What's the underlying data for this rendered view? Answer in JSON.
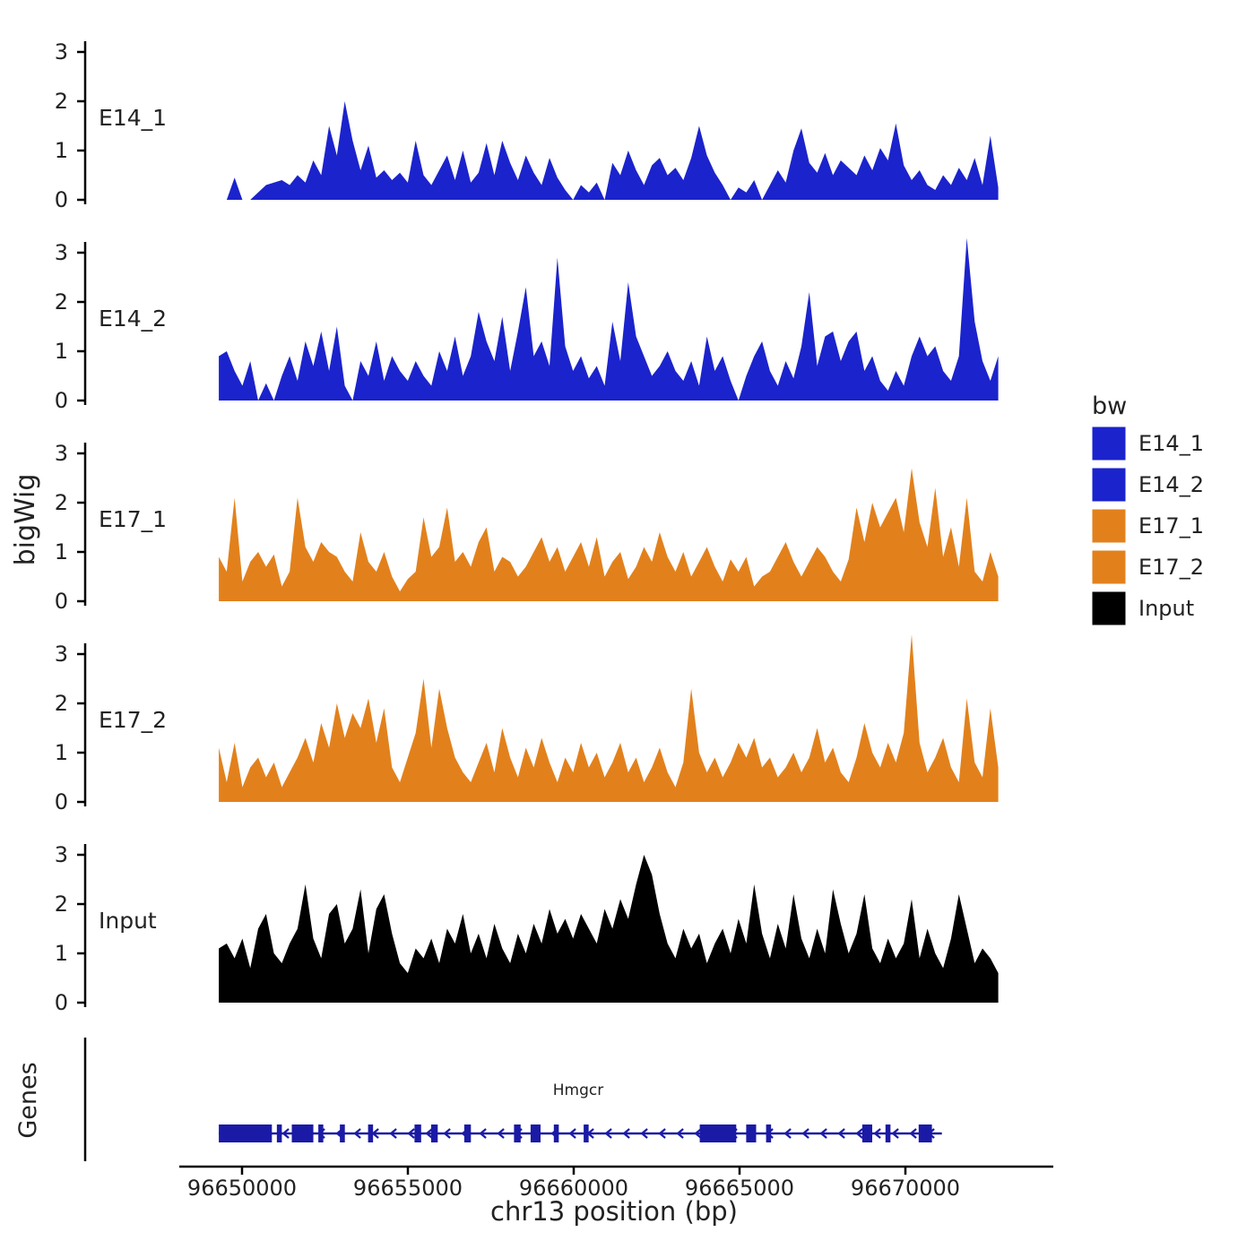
{
  "figure": {
    "y_axis_title": "bigWig",
    "genes_axis_title": "Genes"
  },
  "legend": {
    "title": "bw",
    "entries": [
      {
        "label": "E14_1",
        "color": "#1b23cc"
      },
      {
        "label": "E14_2",
        "color": "#1b23cc"
      },
      {
        "label": "E17_1",
        "color": "#e2811c"
      },
      {
        "label": "E17_2",
        "color": "#e2811c"
      },
      {
        "label": "Input",
        "color": "#000000"
      }
    ]
  },
  "genes": {
    "panel_label": "Genes",
    "gene": {
      "name": "Hmgcr",
      "strand": "-",
      "start": 96649300,
      "end": 96671100,
      "color": "#1a1aa6",
      "exons": [
        [
          96649300,
          96650900
        ],
        [
          96651050,
          96651200
        ],
        [
          96651500,
          96652150
        ],
        [
          96652300,
          96652450
        ],
        [
          96652950,
          96653100
        ],
        [
          96653800,
          96653950
        ],
        [
          96655200,
          96655400
        ],
        [
          96655700,
          96655900
        ],
        [
          96656700,
          96656900
        ],
        [
          96658200,
          96658400
        ],
        [
          96658700,
          96659000
        ],
        [
          96659400,
          96659550
        ],
        [
          96660300,
          96660450
        ],
        [
          96663800,
          96664900
        ],
        [
          96665200,
          96665500
        ],
        [
          96665800,
          96665950
        ],
        [
          96668700,
          96669000
        ],
        [
          96669400,
          96669550
        ],
        [
          96670400,
          96670800
        ]
      ]
    }
  },
  "chart_data": {
    "type": "area",
    "title": "",
    "xlabel": "chr13 position (bp)",
    "ylabel": "bigWig",
    "x_range": [
      96649300,
      96672800
    ],
    "ylim": [
      0,
      3.5
    ],
    "y_ticks": [
      0,
      1,
      2,
      3
    ],
    "x_ticks": [
      {
        "bp": 96650000,
        "label": "96650000"
      },
      {
        "bp": 96655000,
        "label": "96655000"
      },
      {
        "bp": 96660000,
        "label": "96660000"
      },
      {
        "bp": 96665000,
        "label": "96665000"
      },
      {
        "bp": 96670000,
        "label": "96670000"
      }
    ],
    "legend_position": "right",
    "grid": false,
    "tracks": [
      {
        "name": "E14_1",
        "color": "#1b23cc",
        "values": [
          0,
          0,
          0.45,
          0,
          0,
          0.15,
          0.3,
          0.35,
          0.4,
          0.3,
          0.5,
          0.35,
          0.8,
          0.5,
          1.5,
          0.9,
          2.0,
          1.2,
          0.6,
          1.1,
          0.45,
          0.6,
          0.4,
          0.55,
          0.35,
          1.2,
          0.5,
          0.3,
          0.6,
          0.9,
          0.4,
          1.0,
          0.35,
          0.55,
          1.15,
          0.5,
          1.2,
          0.75,
          0.4,
          0.9,
          0.55,
          0.3,
          0.85,
          0.45,
          0.2,
          0,
          0.3,
          0.15,
          0.35,
          0,
          0.75,
          0.5,
          1.0,
          0.6,
          0.3,
          0.7,
          0.85,
          0.5,
          0.65,
          0.4,
          0.85,
          1.5,
          0.9,
          0.55,
          0.3,
          0,
          0.25,
          0.15,
          0.4,
          0,
          0.3,
          0.6,
          0.35,
          1.0,
          1.45,
          0.75,
          0.55,
          0.95,
          0.5,
          0.8,
          0.65,
          0.5,
          0.9,
          0.6,
          1.05,
          0.8,
          1.55,
          0.7,
          0.4,
          0.6,
          0.3,
          0.2,
          0.5,
          0.3,
          0.65,
          0.4,
          0.85,
          0.3,
          1.3,
          0.25
        ]
      },
      {
        "name": "E14_2",
        "color": "#1b23cc",
        "values": [
          0.9,
          1.0,
          0.6,
          0.3,
          0.8,
          0,
          0.35,
          0,
          0.5,
          0.9,
          0.4,
          1.2,
          0.7,
          1.4,
          0.6,
          1.5,
          0.3,
          0,
          0.8,
          0.5,
          1.2,
          0.4,
          0.9,
          0.6,
          0.4,
          0.8,
          0.5,
          0.3,
          1.0,
          0.6,
          1.3,
          0.5,
          0.9,
          1.8,
          1.2,
          0.8,
          1.7,
          0.6,
          1.4,
          2.3,
          0.9,
          1.2,
          0.7,
          2.9,
          1.1,
          0.6,
          0.9,
          0.45,
          0.7,
          0.3,
          1.6,
          0.8,
          2.4,
          1.3,
          0.9,
          0.5,
          0.7,
          1.0,
          0.6,
          0.4,
          0.8,
          0.3,
          1.3,
          0.6,
          0.9,
          0.4,
          0,
          0.5,
          0.9,
          1.2,
          0.6,
          0.3,
          0.8,
          0.45,
          1.1,
          2.2,
          0.7,
          1.3,
          1.4,
          0.8,
          1.2,
          1.4,
          0.6,
          0.9,
          0.4,
          0.2,
          0.6,
          0.3,
          0.9,
          1.3,
          0.9,
          1.1,
          0.6,
          0.4,
          0.9,
          3.3,
          1.6,
          0.8,
          0.4,
          0.9
        ]
      },
      {
        "name": "E17_1",
        "color": "#e2811c",
        "values": [
          0.9,
          0.6,
          2.1,
          0.4,
          0.8,
          1.0,
          0.7,
          0.95,
          0.3,
          0.6,
          2.1,
          1.1,
          0.8,
          1.2,
          1.0,
          0.9,
          0.6,
          0.4,
          1.4,
          0.8,
          0.6,
          1.0,
          0.5,
          0.2,
          0.45,
          0.6,
          1.7,
          0.9,
          1.1,
          1.9,
          0.8,
          1.0,
          0.7,
          1.2,
          1.5,
          0.6,
          0.9,
          0.8,
          0.5,
          0.7,
          1.0,
          1.3,
          0.8,
          1.1,
          0.6,
          0.9,
          1.2,
          0.7,
          1.3,
          0.5,
          0.8,
          1.0,
          0.45,
          0.7,
          1.1,
          0.8,
          1.4,
          0.9,
          0.6,
          1.0,
          0.5,
          0.8,
          1.1,
          0.7,
          0.4,
          0.85,
          0.6,
          0.9,
          0.3,
          0.5,
          0.6,
          0.9,
          1.2,
          0.8,
          0.5,
          0.8,
          1.1,
          0.9,
          0.6,
          0.4,
          0.85,
          1.9,
          1.2,
          2.0,
          1.5,
          1.8,
          2.1,
          1.4,
          2.7,
          1.6,
          1.1,
          2.3,
          0.9,
          1.5,
          0.7,
          2.1,
          0.6,
          0.4,
          1.0,
          0.5
        ]
      },
      {
        "name": "E17_2",
        "color": "#e2811c",
        "values": [
          1.1,
          0.4,
          1.2,
          0.3,
          0.7,
          0.9,
          0.5,
          0.8,
          0.3,
          0.6,
          0.9,
          1.3,
          0.8,
          1.6,
          1.1,
          2.0,
          1.3,
          1.8,
          1.5,
          2.1,
          1.2,
          1.9,
          0.7,
          0.4,
          0.9,
          1.4,
          2.5,
          1.1,
          2.3,
          1.5,
          0.9,
          0.6,
          0.4,
          0.8,
          1.2,
          0.6,
          1.5,
          0.9,
          0.5,
          1.1,
          0.7,
          1.3,
          0.8,
          0.4,
          0.9,
          0.6,
          1.2,
          0.7,
          1.0,
          0.5,
          0.8,
          1.2,
          0.6,
          0.9,
          0.4,
          0.7,
          1.1,
          0.6,
          0.3,
          0.8,
          2.3,
          1.0,
          0.6,
          0.9,
          0.5,
          0.8,
          1.2,
          0.9,
          1.3,
          0.7,
          0.9,
          0.5,
          0.7,
          1.0,
          0.6,
          0.9,
          1.5,
          0.8,
          1.1,
          0.6,
          0.4,
          0.9,
          1.6,
          1.0,
          0.7,
          1.2,
          0.8,
          1.4,
          3.4,
          1.2,
          0.6,
          0.9,
          1.3,
          0.7,
          0.4,
          2.1,
          0.8,
          0.5,
          1.9,
          0.7
        ]
      },
      {
        "name": "Input",
        "color": "#000000",
        "values": [
          1.1,
          1.2,
          0.9,
          1.3,
          0.7,
          1.5,
          1.8,
          1.0,
          0.8,
          1.2,
          1.5,
          2.4,
          1.3,
          0.9,
          1.8,
          2.0,
          1.2,
          1.5,
          2.3,
          1.0,
          1.9,
          2.2,
          1.4,
          0.8,
          0.6,
          1.1,
          0.9,
          1.3,
          0.8,
          1.5,
          1.2,
          1.8,
          1.0,
          1.4,
          0.9,
          1.6,
          1.1,
          0.8,
          1.4,
          1.0,
          1.6,
          1.2,
          1.9,
          1.4,
          1.7,
          1.3,
          1.8,
          1.5,
          1.2,
          1.9,
          1.5,
          2.1,
          1.7,
          2.4,
          3.0,
          2.6,
          1.8,
          1.2,
          0.9,
          1.5,
          1.1,
          1.4,
          0.8,
          1.2,
          1.5,
          1.0,
          1.7,
          1.2,
          2.4,
          1.4,
          0.9,
          1.6,
          1.1,
          2.2,
          1.3,
          0.9,
          1.5,
          1.0,
          2.3,
          1.6,
          1.0,
          1.4,
          2.2,
          1.1,
          0.8,
          1.3,
          0.9,
          1.2,
          2.1,
          0.9,
          1.5,
          1.0,
          0.7,
          1.3,
          2.2,
          1.5,
          0.8,
          1.1,
          0.9,
          0.6
        ]
      }
    ]
  }
}
